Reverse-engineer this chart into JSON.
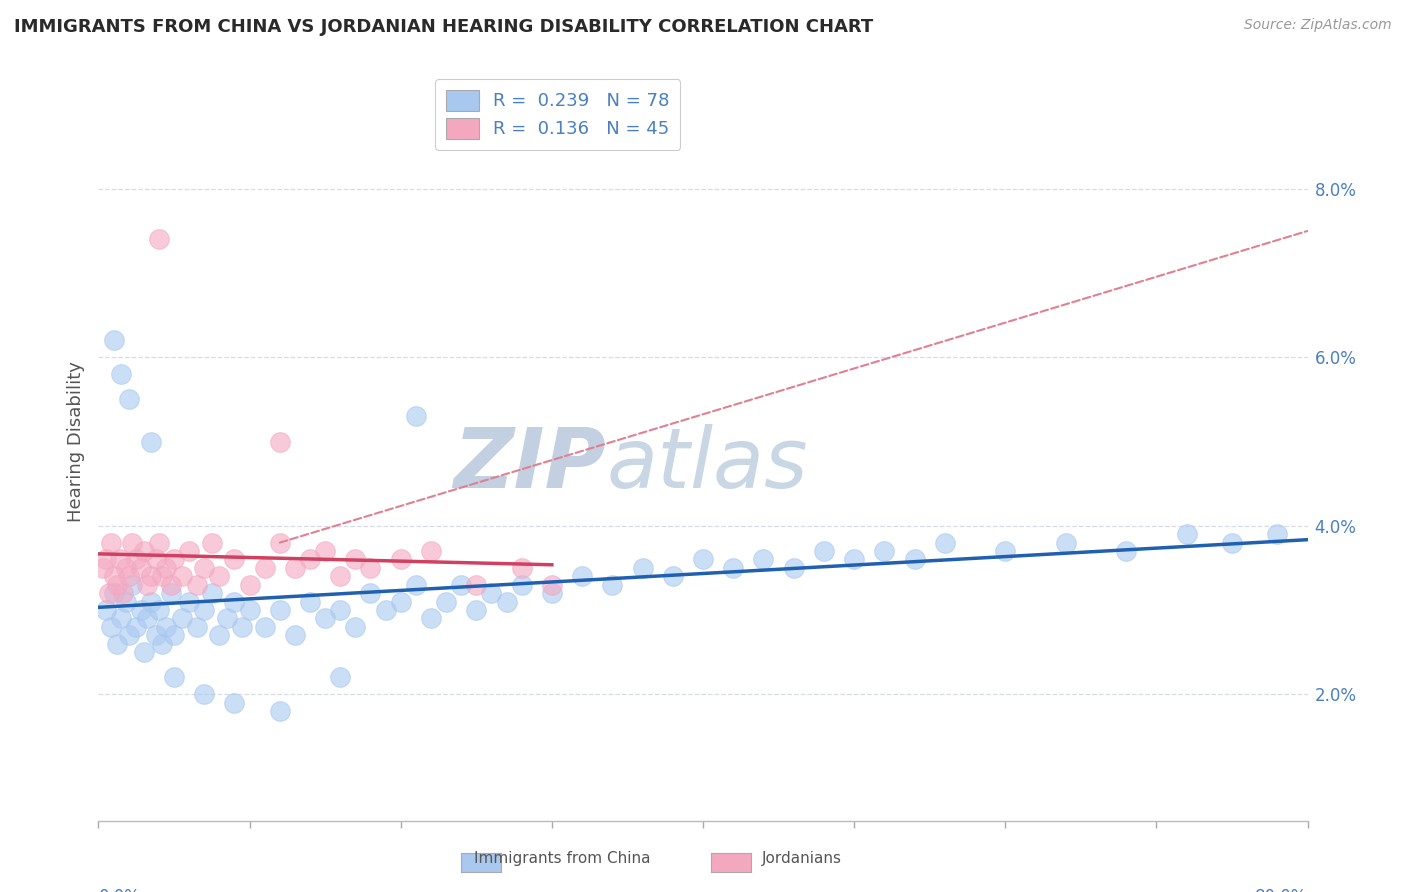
{
  "title": "IMMIGRANTS FROM CHINA VS JORDANIAN HEARING DISABILITY CORRELATION CHART",
  "source": "Source: ZipAtlas.com",
  "ylabel": "Hearing Disability",
  "legend_text_color": "#4a7fc1",
  "blue_fill": "#a8c8f0",
  "pink_fill": "#f4a8c0",
  "blue_line_color": "#2060b0",
  "pink_line_color": "#d04060",
  "dashed_line_color": "#e08090",
  "watermark": "ZIPatlas",
  "watermark_color": "#c8d8ec",
  "xlim": [
    0.0,
    0.8
  ],
  "ylim": [
    0.005,
    0.095
  ],
  "yticks": [
    0.02,
    0.04,
    0.06,
    0.08
  ],
  "ytick_labels": [
    "2.0%",
    "4.0%",
    "6.0%",
    "8.0%"
  ],
  "background": "#ffffff",
  "grid_color": "#d8dce8",
  "blue_x": [
    0.005,
    0.008,
    0.01,
    0.012,
    0.015,
    0.018,
    0.02,
    0.022,
    0.025,
    0.028,
    0.03,
    0.032,
    0.035,
    0.038,
    0.04,
    0.042,
    0.045,
    0.048,
    0.05,
    0.055,
    0.06,
    0.065,
    0.07,
    0.075,
    0.08,
    0.085,
    0.09,
    0.095,
    0.1,
    0.11,
    0.12,
    0.13,
    0.14,
    0.15,
    0.16,
    0.17,
    0.18,
    0.19,
    0.2,
    0.21,
    0.22,
    0.23,
    0.24,
    0.25,
    0.26,
    0.27,
    0.28,
    0.3,
    0.32,
    0.34,
    0.36,
    0.38,
    0.4,
    0.42,
    0.44,
    0.46,
    0.48,
    0.5,
    0.52,
    0.54,
    0.56,
    0.6,
    0.64,
    0.68,
    0.72,
    0.75,
    0.78,
    0.01,
    0.015,
    0.02,
    0.035,
    0.05,
    0.07,
    0.09,
    0.12,
    0.16,
    0.21
  ],
  "blue_y": [
    0.03,
    0.028,
    0.032,
    0.026,
    0.029,
    0.031,
    0.027,
    0.033,
    0.028,
    0.03,
    0.025,
    0.029,
    0.031,
    0.027,
    0.03,
    0.026,
    0.028,
    0.032,
    0.027,
    0.029,
    0.031,
    0.028,
    0.03,
    0.032,
    0.027,
    0.029,
    0.031,
    0.028,
    0.03,
    0.028,
    0.03,
    0.027,
    0.031,
    0.029,
    0.03,
    0.028,
    0.032,
    0.03,
    0.031,
    0.033,
    0.029,
    0.031,
    0.033,
    0.03,
    0.032,
    0.031,
    0.033,
    0.032,
    0.034,
    0.033,
    0.035,
    0.034,
    0.036,
    0.035,
    0.036,
    0.035,
    0.037,
    0.036,
    0.037,
    0.036,
    0.038,
    0.037,
    0.038,
    0.037,
    0.039,
    0.038,
    0.039,
    0.062,
    0.058,
    0.055,
    0.05,
    0.022,
    0.02,
    0.019,
    0.018,
    0.022,
    0.053
  ],
  "pink_x": [
    0.003,
    0.005,
    0.007,
    0.008,
    0.01,
    0.012,
    0.014,
    0.016,
    0.018,
    0.02,
    0.022,
    0.025,
    0.028,
    0.03,
    0.032,
    0.035,
    0.038,
    0.04,
    0.042,
    0.045,
    0.048,
    0.05,
    0.055,
    0.06,
    0.065,
    0.07,
    0.075,
    0.08,
    0.09,
    0.1,
    0.11,
    0.12,
    0.13,
    0.14,
    0.15,
    0.16,
    0.17,
    0.18,
    0.2,
    0.22,
    0.25,
    0.28,
    0.3,
    0.12,
    0.04
  ],
  "pink_y": [
    0.035,
    0.036,
    0.032,
    0.038,
    0.034,
    0.033,
    0.036,
    0.032,
    0.035,
    0.034,
    0.038,
    0.036,
    0.035,
    0.037,
    0.033,
    0.034,
    0.036,
    0.038,
    0.034,
    0.035,
    0.033,
    0.036,
    0.034,
    0.037,
    0.033,
    0.035,
    0.038,
    0.034,
    0.036,
    0.033,
    0.035,
    0.038,
    0.035,
    0.036,
    0.037,
    0.034,
    0.036,
    0.035,
    0.036,
    0.037,
    0.033,
    0.035,
    0.033,
    0.05,
    0.074
  ]
}
